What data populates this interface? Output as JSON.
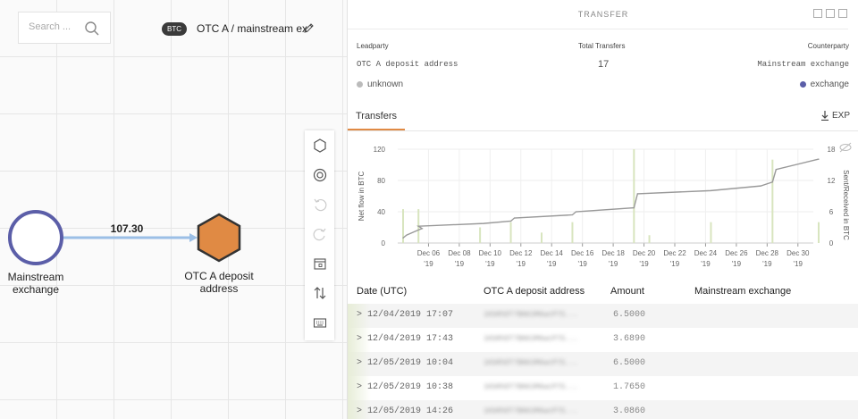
{
  "canvas": {
    "search_placeholder": "Search ...",
    "currency_tag": "BTC",
    "title": "OTC A / mainstream ex",
    "edge_value": "107.30",
    "nodes": {
      "source": {
        "label_line1": "Mainstream",
        "label_line2": "exchange",
        "color": "#5b5ea8"
      },
      "target": {
        "label_line1": "OTC A deposit",
        "label_line2": "address",
        "color": "#e08a44"
      }
    }
  },
  "toolbar": {
    "items": [
      "hexagon-icon",
      "target-icon",
      "undo-icon",
      "redo-icon",
      "calendar-icon",
      "swap-vertical-icon",
      "keyboard-icon"
    ]
  },
  "panel": {
    "title": "TRANSFER",
    "leadparty_label": "Leadparty",
    "total_label": "Total Transfers",
    "counterparty_label": "Counterparty",
    "leadparty_value": "OTC A deposit address",
    "total_value": "17",
    "counterparty_value": "Mainstream exchange",
    "leadparty_type": "unknown",
    "counterparty_type": "exchange",
    "leadparty_dot_color": "#bbbbbb",
    "counterparty_dot_color": "#5b5ea8",
    "tab_label": "Transfers",
    "export_label": "EXP"
  },
  "chart_data": {
    "type": "line",
    "ylabel": "Net flow in BTC",
    "y2label": "Sent/Received in BTC",
    "ylim": [
      0,
      120
    ],
    "y_ticks": [
      "0",
      "40",
      "80",
      "120"
    ],
    "y2lim": [
      0,
      18
    ],
    "y2_ticks": [
      "0",
      "6",
      "12",
      "18"
    ],
    "x_ticks": [
      {
        "l1": "Dec 06",
        "l2": "'19"
      },
      {
        "l1": "Dec 08",
        "l2": "'19"
      },
      {
        "l1": "Dec 10",
        "l2": "'19"
      },
      {
        "l1": "Dec 12",
        "l2": "'19"
      },
      {
        "l1": "Dec 14",
        "l2": "'19"
      },
      {
        "l1": "Dec 16",
        "l2": "'19"
      },
      {
        "l1": "Dec 18",
        "l2": "'19"
      },
      {
        "l1": "Dec 20",
        "l2": "'19"
      },
      {
        "l1": "Dec 22",
        "l2": "'19"
      },
      {
        "l1": "Dec 24",
        "l2": "'19"
      },
      {
        "l1": "Dec 26",
        "l2": "'19"
      },
      {
        "l1": "Dec 28",
        "l2": "'19"
      },
      {
        "l1": "Dec 30",
        "l2": "'19"
      }
    ],
    "x_range": [
      "2019-12-04",
      "2019-12-31"
    ],
    "series": [
      {
        "values": [
          {
            "x": "2019-12-04",
            "y": 6.5
          },
          {
            "x": "2019-12-04",
            "y": 10.2
          },
          {
            "x": "2019-12-05",
            "y": 16.7
          },
          {
            "x": "2019-12-05",
            "y": 18.5
          },
          {
            "x": "2019-12-05",
            "y": 21.5
          },
          {
            "x": "2019-12-09",
            "y": 25
          },
          {
            "x": "2019-12-11",
            "y": 28
          },
          {
            "x": "2019-12-11",
            "y": 32
          },
          {
            "x": "2019-12-15",
            "y": 36
          },
          {
            "x": "2019-12-15",
            "y": 40
          },
          {
            "x": "2019-12-19",
            "y": 45
          },
          {
            "x": "2019-12-19",
            "y": 63
          },
          {
            "x": "2019-12-24",
            "y": 67
          },
          {
            "x": "2019-12-27",
            "y": 73
          },
          {
            "x": "2019-12-28",
            "y": 78
          },
          {
            "x": "2019-12-28",
            "y": 94
          },
          {
            "x": "2019-12-31",
            "y": 107.3
          }
        ]
      }
    ],
    "bars": [
      {
        "x": "2019-12-04",
        "y": 6.5
      },
      {
        "x": "2019-12-05",
        "y": 6.5
      },
      {
        "x": "2019-12-09",
        "y": 3
      },
      {
        "x": "2019-12-11",
        "y": 4
      },
      {
        "x": "2019-12-13",
        "y": 2
      },
      {
        "x": "2019-12-15",
        "y": 4
      },
      {
        "x": "2019-12-19",
        "y": 18
      },
      {
        "x": "2019-12-20",
        "y": 1.5
      },
      {
        "x": "2019-12-24",
        "y": 4
      },
      {
        "x": "2019-12-28",
        "y": 16
      },
      {
        "x": "2019-12-31",
        "y": 4
      }
    ],
    "colors": {
      "line": "#999999",
      "bars": "#d8e5bf"
    }
  },
  "table": {
    "headers": [
      "Date (UTC)",
      "OTC A deposit address",
      "Amount",
      "Mainstream exchange"
    ],
    "rows": [
      {
        "date": "12/04/2019 17:07",
        "address": "1KbRhDT7BN63M6wcP7S...",
        "amount": "6.5000"
      },
      {
        "date": "12/04/2019 17:43",
        "address": "1KbRhDT7BN63M6wcP7S...",
        "amount": "3.6890"
      },
      {
        "date": "12/05/2019 10:04",
        "address": "1KbRhDT7BN63M6wcP7S...",
        "amount": "6.5000"
      },
      {
        "date": "12/05/2019 10:38",
        "address": "1KbRhDT7BN63M6wcP7S...",
        "amount": "1.7650"
      },
      {
        "date": "12/05/2019 14:26",
        "address": "1KbRhDT7BN63M6wcP7S...",
        "amount": "3.0860"
      }
    ]
  }
}
